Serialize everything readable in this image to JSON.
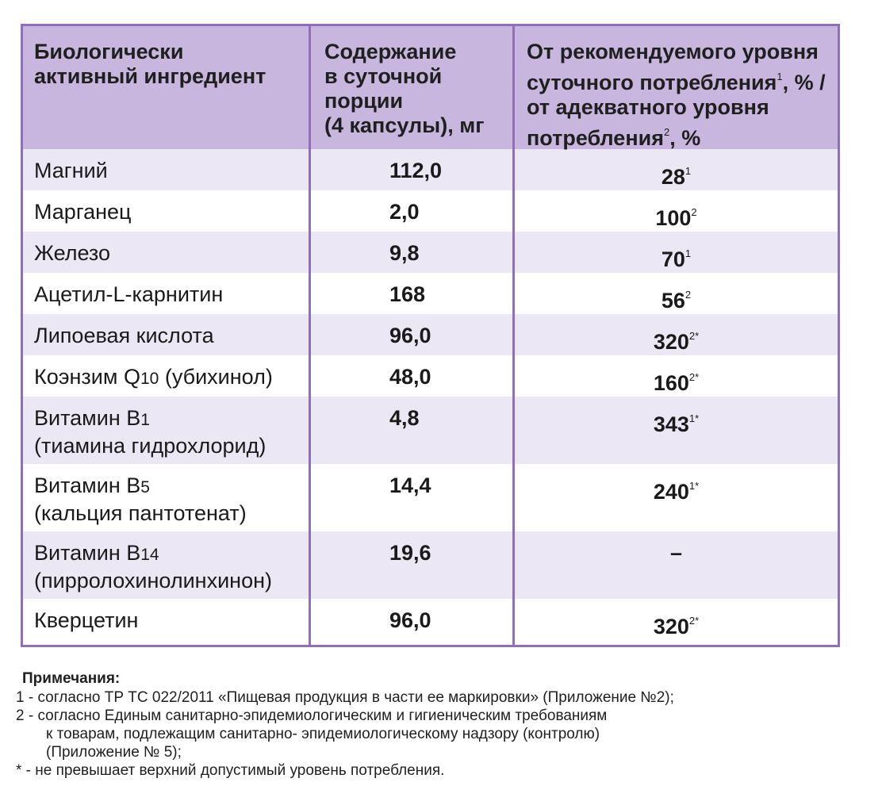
{
  "table": {
    "headers": {
      "ingredient": [
        "Биологически",
        "активный ингредиент"
      ],
      "content": [
        "Содержание",
        "в суточной",
        "порции",
        "(4 капсулы), мг"
      ],
      "percent_line1": "От рекомендуемого уровня",
      "percent_line2_a": "суточного потребления",
      "percent_line2_sup": "1",
      "percent_line2_b": ", % /",
      "percent_line3": "от адекватного уровня",
      "percent_line4_a": "потребления",
      "percent_line4_sup": "2",
      "percent_line4_b": ", %"
    },
    "rows": [
      {
        "name": "Магний",
        "amount": "112,0",
        "percent": "28",
        "note": "1"
      },
      {
        "name": "Марганец",
        "amount": "2,0",
        "percent": "100",
        "note": "2"
      },
      {
        "name": "Железо",
        "amount": "9,8",
        "percent": "70",
        "note": "1"
      },
      {
        "name": "Ацетил-L-карнитин",
        "amount": "168",
        "percent": "56",
        "note": "2"
      },
      {
        "name": "Липоевая кислота",
        "amount": "96,0",
        "percent": "320",
        "note": "2*"
      },
      {
        "name_a": "Коэнзим Q",
        "name_sub": "10",
        "name_b": " (убихинол)",
        "amount": "48,0",
        "percent": "160",
        "note": "2*"
      },
      {
        "name_a": "Витамин B",
        "name_sub": "1",
        "name_line2": "(тиамина гидрохлорид)",
        "amount": "4,8",
        "percent": "343",
        "note": "1*"
      },
      {
        "name_a": "Витамин B",
        "name_sub": "5",
        "name_line2": "(кальция пантотенат)",
        "amount": "14,4",
        "percent": "240",
        "note": "1*"
      },
      {
        "name_a": "Витамин B",
        "name_sub": "14",
        "name_line2": "(пирролохинолинхинон)",
        "amount": "19,6",
        "percent": "–",
        "note": ""
      },
      {
        "name": "Кверцетин",
        "amount": "96,0",
        "percent": "320",
        "note": "2*"
      }
    ]
  },
  "notes": {
    "title": "Примечания:",
    "lines": [
      "1 - согласно ТР ТС 022/2011 «Пищевая продукция в части ее маркировки» (Приложение №2);",
      "2 - согласно Единым санитарно-эпидемиологическим и гигиеническим требованиям",
      "к товарам, подлежащим санитарно- эпидемиологическому надзору (контролю)",
      "(Приложение № 5);",
      "* - не превышает верхний допустимый уровень потребления."
    ]
  }
}
